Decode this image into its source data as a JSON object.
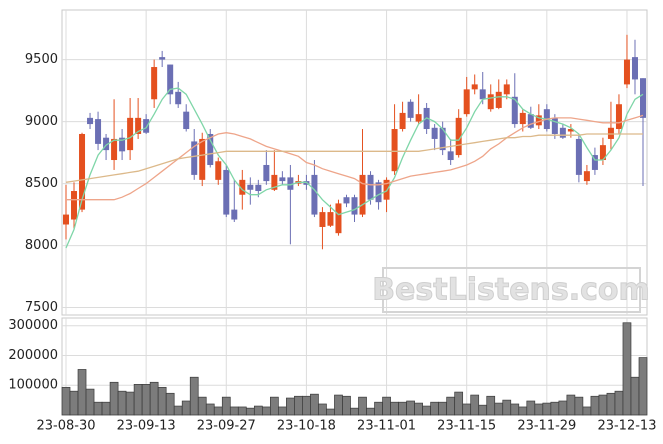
{
  "chart_data": [
    {
      "type": "candlestick",
      "up_color": "#e4501f",
      "down_color": "#6b6fb4",
      "grid": true,
      "watermark": "BestListens.com",
      "ylim": [
        7440,
        9900
      ],
      "yticks": [
        7500,
        8000,
        8500,
        9000,
        9500
      ],
      "open": [
        8170,
        8210,
        8290,
        9030,
        9020,
        8870,
        8690,
        8870,
        8770,
        8900,
        9020,
        9180,
        9520,
        9460,
        9240,
        9080,
        8840,
        8530,
        8900,
        8530,
        8610,
        8290,
        8410,
        8490,
        8490,
        8650,
        8450,
        8550,
        8550,
        8500,
        8520,
        8570,
        8150,
        8160,
        8100,
        8390,
        8390,
        8250,
        8570,
        8510,
        8370,
        8600,
        8940,
        9160,
        9000,
        9110,
        8950,
        8950,
        8760,
        8730,
        9060,
        9260,
        9260,
        9100,
        9110,
        9220,
        9200,
        8980,
        9060,
        8970,
        9100,
        9030,
        8950,
        8920,
        8860,
        8520,
        8730,
        8690,
        8860,
        8940,
        9300,
        9520,
        9350
      ],
      "high": [
        8490,
        8510,
        8910,
        9070,
        9080,
        8900,
        9180,
        8940,
        9190,
        9190,
        9060,
        9500,
        9570,
        9460,
        9320,
        9140,
        8940,
        8910,
        8940,
        8710,
        8650,
        8530,
        8610,
        8550,
        8530,
        8770,
        8770,
        8600,
        8650,
        8570,
        8570,
        8690,
        8310,
        8330,
        8370,
        8410,
        8410,
        8940,
        8600,
        8530,
        8550,
        9140,
        9160,
        9180,
        9220,
        9150,
        8980,
        9000,
        8860,
        9100,
        9360,
        9380,
        9400,
        9300,
        9340,
        9340,
        9390,
        9100,
        9120,
        9140,
        9140,
        9060,
        8980,
        8980,
        8900,
        8650,
        8790,
        8870,
        9160,
        9220,
        9700,
        9660,
        9350
      ],
      "low": [
        8050,
        8130,
        8270,
        8940,
        8770,
        8690,
        8610,
        8690,
        8690,
        8860,
        8900,
        9110,
        9440,
        9140,
        9110,
        8920,
        8530,
        8480,
        8630,
        8490,
        8230,
        8190,
        8290,
        8330,
        8390,
        8490,
        8440,
        8490,
        8010,
        8480,
        8450,
        8230,
        7970,
        8150,
        8080,
        8310,
        8190,
        8230,
        8330,
        8290,
        8270,
        8570,
        8920,
        9000,
        8980,
        8900,
        8770,
        8730,
        8650,
        8710,
        9040,
        9220,
        9140,
        9080,
        9100,
        9180,
        8950,
        8920,
        8940,
        8940,
        8920,
        8860,
        8860,
        8870,
        8510,
        8490,
        8570,
        8650,
        8770,
        8900,
        9270,
        9220,
        8480
      ],
      "close": [
        8250,
        8440,
        8900,
        8980,
        8820,
        8770,
        8860,
        8760,
        9030,
        9030,
        8910,
        9440,
        9500,
        9220,
        9140,
        8940,
        8570,
        8860,
        8650,
        8680,
        8250,
        8210,
        8530,
        8450,
        8440,
        8520,
        8570,
        8520,
        8450,
        8520,
        8490,
        8250,
        8270,
        8270,
        8340,
        8340,
        8250,
        8570,
        8370,
        8350,
        8530,
        8940,
        9070,
        9030,
        9060,
        8940,
        8860,
        8770,
        8690,
        9030,
        9260,
        9300,
        9180,
        9220,
        9240,
        9300,
        8980,
        9070,
        8950,
        9050,
        8940,
        8900,
        8870,
        8940,
        8570,
        8600,
        8610,
        8810,
        8950,
        9140,
        9500,
        9340,
        9030
      ],
      "lines": [
        {
          "color": "#7fd6a8",
          "values": [
            7980,
            8130,
            8370,
            8570,
            8730,
            8810,
            8850,
            8850,
            8870,
            8920,
            8950,
            9060,
            9180,
            9260,
            9270,
            9220,
            9100,
            8980,
            8850,
            8730,
            8650,
            8530,
            8450,
            8410,
            8410,
            8450,
            8470,
            8490,
            8490,
            8510,
            8510,
            8450,
            8370,
            8310,
            8250,
            8270,
            8290,
            8330,
            8370,
            8410,
            8440,
            8550,
            8710,
            8850,
            8980,
            9030,
            9000,
            8940,
            8850,
            8850,
            8950,
            9080,
            9180,
            9190,
            9200,
            9200,
            9180,
            9100,
            9060,
            9030,
            9020,
            9000,
            8980,
            8950,
            8900,
            8790,
            8690,
            8690,
            8770,
            8870,
            9060,
            9180,
            9220
          ]
        },
        {
          "color": "#eea58a",
          "values": [
            8370,
            8370,
            8370,
            8370,
            8370,
            8370,
            8370,
            8390,
            8420,
            8460,
            8500,
            8550,
            8600,
            8650,
            8700,
            8750,
            8800,
            8840,
            8870,
            8900,
            8910,
            8900,
            8880,
            8860,
            8830,
            8800,
            8780,
            8760,
            8740,
            8720,
            8670,
            8650,
            8620,
            8600,
            8580,
            8560,
            8540,
            8500,
            8490,
            8490,
            8500,
            8520,
            8540,
            8560,
            8570,
            8580,
            8590,
            8600,
            8610,
            8630,
            8650,
            8680,
            8720,
            8780,
            8820,
            8870,
            8910,
            8950,
            8980,
            9000,
            9020,
            9030,
            9030,
            9030,
            9020,
            9010,
            9000,
            8990,
            8990,
            8990,
            9010,
            9030,
            9050
          ]
        },
        {
          "color": "#dcb98a",
          "values": [
            8510,
            8520,
            8530,
            8540,
            8550,
            8560,
            8570,
            8580,
            8590,
            8600,
            8620,
            8640,
            8660,
            8680,
            8700,
            8710,
            8720,
            8730,
            8740,
            8750,
            8760,
            8760,
            8760,
            8760,
            8760,
            8760,
            8760,
            8760,
            8760,
            8760,
            8760,
            8760,
            8760,
            8760,
            8760,
            8760,
            8760,
            8760,
            8760,
            8760,
            8760,
            8760,
            8760,
            8760,
            8760,
            8770,
            8780,
            8790,
            8800,
            8810,
            8820,
            8830,
            8840,
            8850,
            8860,
            8870,
            8870,
            8880,
            8880,
            8890,
            8890,
            8890,
            8890,
            8890,
            8890,
            8900,
            8900,
            8900,
            8900,
            8900,
            8900,
            8900,
            8900
          ]
        }
      ]
    },
    {
      "type": "bar",
      "color": "#7c7c7c",
      "grid": true,
      "ylim": [
        0,
        326000
      ],
      "yticks": [
        100000,
        200000,
        300000
      ],
      "categories": [
        "23-08-30",
        null,
        null,
        null,
        null,
        null,
        null,
        null,
        null,
        null,
        "23-09-13",
        null,
        null,
        null,
        null,
        null,
        null,
        null,
        null,
        null,
        "23-09-27",
        null,
        null,
        null,
        null,
        null,
        null,
        null,
        null,
        null,
        "23-10-18",
        null,
        null,
        null,
        null,
        null,
        null,
        null,
        null,
        null,
        "23-11-01",
        null,
        null,
        null,
        null,
        null,
        null,
        null,
        null,
        null,
        "23-11-15",
        null,
        null,
        null,
        null,
        null,
        null,
        null,
        null,
        null,
        "23-11-29",
        null,
        null,
        null,
        null,
        null,
        null,
        null,
        null,
        null,
        "23-12-13",
        null,
        null
      ],
      "values": [
        93000,
        80000,
        153000,
        87000,
        43000,
        43000,
        110000,
        80000,
        77000,
        103000,
        103000,
        110000,
        93000,
        73000,
        30000,
        47000,
        127000,
        60000,
        37000,
        27000,
        60000,
        27000,
        27000,
        23000,
        30000,
        27000,
        60000,
        27000,
        57000,
        63000,
        63000,
        70000,
        37000,
        20000,
        67000,
        63000,
        23000,
        60000,
        23000,
        43000,
        60000,
        43000,
        43000,
        47000,
        40000,
        30000,
        43000,
        43000,
        60000,
        77000,
        37000,
        67000,
        33000,
        63000,
        40000,
        50000,
        37000,
        27000,
        47000,
        37000,
        40000,
        43000,
        47000,
        67000,
        60000,
        27000,
        63000,
        67000,
        73000,
        80000,
        310000,
        127000,
        193000
      ]
    }
  ]
}
